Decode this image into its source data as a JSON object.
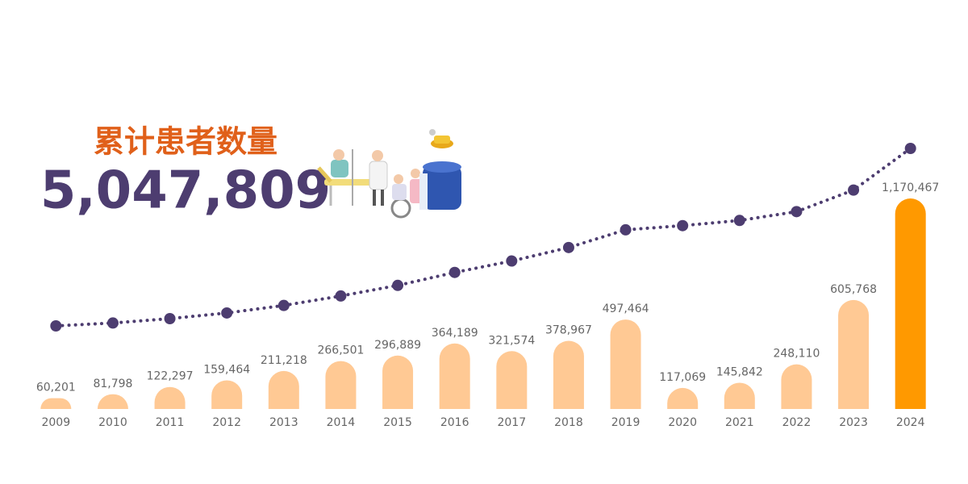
{
  "chart_data": {
    "type": "bar",
    "title": "累计患者数量",
    "total": "5,047,809",
    "categories": [
      "2009",
      "2010",
      "2011",
      "2012",
      "2013",
      "2014",
      "2015",
      "2016",
      "2017",
      "2018",
      "2019",
      "2020",
      "2021",
      "2022",
      "2023",
      "2024"
    ],
    "values": [
      60201,
      81798,
      122297,
      159464,
      211218,
      266501,
      296889,
      364189,
      321574,
      378967,
      497464,
      117069,
      145842,
      248110,
      605768,
      1170467
    ],
    "value_labels": [
      "60,201",
      "81,798",
      "122,297",
      "159,464",
      "211,218",
      "266,501",
      "296,889",
      "364,189",
      "321,574",
      "378,967",
      "497,464",
      "117,069",
      "145,842",
      "248,110",
      "605,768",
      "1,170,467"
    ],
    "colors": [
      "#ffc994",
      "#ffc994",
      "#ffc994",
      "#ffc994",
      "#ffc994",
      "#ffc994",
      "#ffc994",
      "#ffc994",
      "#ffc994",
      "#ffc994",
      "#ffc994",
      "#ffc994",
      "#ffc994",
      "#ffc994",
      "#ffc994",
      "#ff9900"
    ],
    "ylim": [
      0,
      1170467
    ],
    "line_values": [
      60201,
      141999,
      264296,
      423760,
      634978,
      901479,
      1198368,
      1562557,
      1884131,
      2263098,
      2760562,
      2877631,
      3023473,
      3271583,
      3877351,
      5047809
    ],
    "line_color": "#4d3d70",
    "y2lim": [
      60201,
      5047809
    ]
  }
}
